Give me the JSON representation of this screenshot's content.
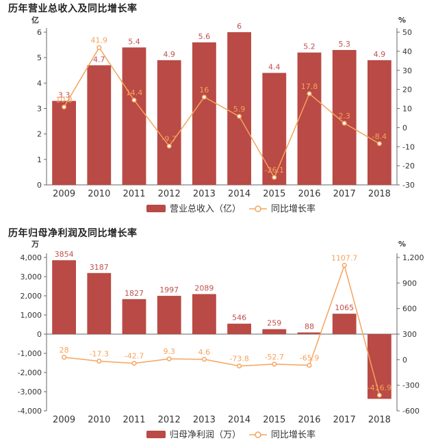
{
  "colors": {
    "bar": "#b94a45",
    "line": "#f5a35c",
    "axis": "#666666",
    "grid": "#e6e6e6"
  },
  "chart_data": [
    {
      "type": "bar",
      "title": "历年营业总收入及同比增长率",
      "left_unit": "亿",
      "right_unit": "%",
      "categories": [
        "2009",
        "2010",
        "2011",
        "2012",
        "2013",
        "2014",
        "2015",
        "2016",
        "2017",
        "2018"
      ],
      "series": [
        {
          "name": "营业总收入（亿）",
          "type": "bar",
          "axis": "left",
          "values": [
            3.3,
            4.7,
            5.4,
            4.9,
            5.6,
            6,
            4.4,
            5.2,
            5.3,
            4.9
          ],
          "labels": [
            "3.3",
            "4.7",
            "5.4",
            "4.9",
            "5.6",
            "6",
            "4.4",
            "5.2",
            "5.3",
            "4.9"
          ]
        },
        {
          "name": "同比增长率",
          "type": "line",
          "axis": "right",
          "values": [
            10.8,
            41.9,
            14.4,
            -9.7,
            16,
            5.9,
            -26.1,
            17.8,
            2.3,
            -8.4
          ],
          "labels": [
            "10.8",
            "41.9",
            "14.4",
            "-9.7",
            "16",
            "5.9",
            "-26.1",
            "17.8",
            "2.3",
            "-8.4"
          ]
        }
      ],
      "left_axis": {
        "min": 0,
        "max": 6,
        "ticks": [
          "0",
          "1",
          "2",
          "3",
          "4",
          "5",
          "6"
        ]
      },
      "right_axis": {
        "min": -30,
        "max": 50,
        "ticks": [
          "-30",
          "-20",
          "-10",
          "0",
          "10",
          "20",
          "30",
          "40",
          "50"
        ]
      },
      "legend": [
        "营业总收入（亿）",
        "同比增长率"
      ]
    },
    {
      "type": "bar",
      "title": "历年归母净利润及同比增长率",
      "left_unit": "万",
      "right_unit": "%",
      "categories": [
        "2009",
        "2010",
        "2011",
        "2012",
        "2013",
        "2014",
        "2015",
        "2016",
        "2017",
        "2018"
      ],
      "series": [
        {
          "name": "归母净利润（万）",
          "type": "bar",
          "axis": "left",
          "values": [
            3854,
            3187,
            1827,
            1997,
            2089,
            546,
            259,
            88,
            1065,
            -3375
          ],
          "labels": [
            "3854",
            "3187",
            "1827",
            "1997",
            "2089",
            "546",
            "259",
            "88",
            "1065",
            "-3375"
          ]
        },
        {
          "name": "同比增长率",
          "type": "line",
          "axis": "right",
          "values": [
            28,
            -17.3,
            -42.7,
            9.3,
            4.6,
            -73.8,
            -52.7,
            -65.9,
            1107.7,
            -416.9
          ],
          "labels": [
            "28",
            "-17.3",
            "-42.7",
            "9.3",
            "4.6",
            "-73.8",
            "-52.7",
            "-65.9",
            "1107.7",
            "-416.9"
          ]
        }
      ],
      "left_axis": {
        "min": -4000,
        "max": 4000,
        "ticks": [
          "-4,000",
          "-3,000",
          "-2,000",
          "-1,000",
          "0",
          "1,000",
          "2,000",
          "3,000",
          "4,000"
        ]
      },
      "right_axis": {
        "min": -600,
        "max": 1200,
        "ticks": [
          "-600",
          "-300",
          "0",
          "300",
          "600",
          "900",
          "1,200"
        ]
      },
      "legend": [
        "归母净利润（万）",
        "同比增长率"
      ]
    }
  ]
}
